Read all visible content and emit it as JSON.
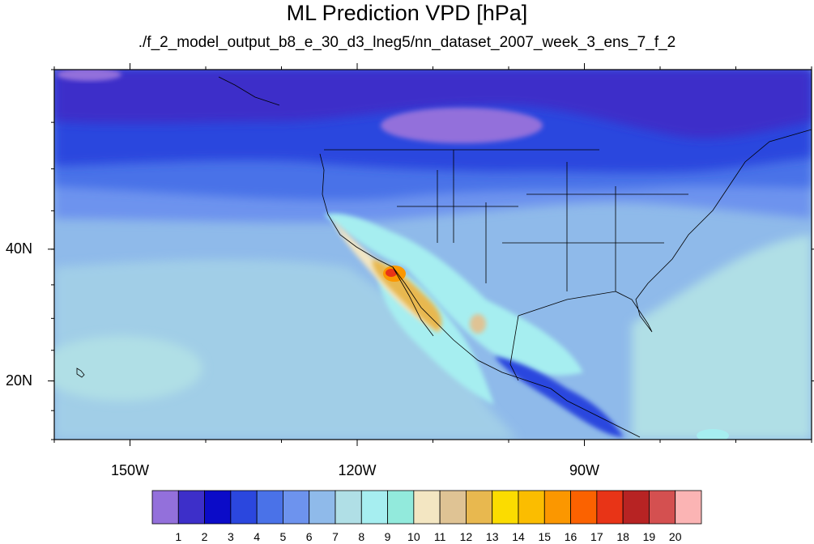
{
  "title": "ML Prediction VPD [hPa]",
  "subtitle": "./f_2_model_output_b8_e_30_d3_lneg5/nn_dataset_2007_week_3_ens_7_f_2",
  "axes": {
    "lon_labels": [
      {
        "lon": -150,
        "label": "150W"
      },
      {
        "lon": -120,
        "label": "120W"
      },
      {
        "lon": -90,
        "label": "90W"
      }
    ],
    "lat_labels": [
      {
        "lat": 40,
        "label": "40N"
      },
      {
        "lat": 20,
        "label": "20N"
      }
    ],
    "lon_range": [
      -160,
      -60
    ],
    "lat_range": [
      10,
      60
    ]
  },
  "colorbar": {
    "labels": [
      "1",
      "2",
      "3",
      "4",
      "5",
      "6",
      "7",
      "8",
      "9",
      "10",
      "11",
      "12",
      "13",
      "14",
      "15",
      "16",
      "17",
      "18",
      "19",
      "20"
    ],
    "colors": [
      "#9370db",
      "#3d2fc9",
      "#0b0bc8",
      "#2b47de",
      "#4a72e8",
      "#6d93ee",
      "#8fbaea",
      "#b0dfe6",
      "#a6eef0",
      "#92eadc",
      "#f3e6c2",
      "#dfc394",
      "#e8b84f",
      "#fbdc00",
      "#fbbd00",
      "#fb9700",
      "#fb6200",
      "#e83417",
      "#b72323",
      "#d45050",
      "#fbb4b4"
    ]
  },
  "colors": {
    "land_border": "#000000",
    "state_lines": "#000000"
  }
}
